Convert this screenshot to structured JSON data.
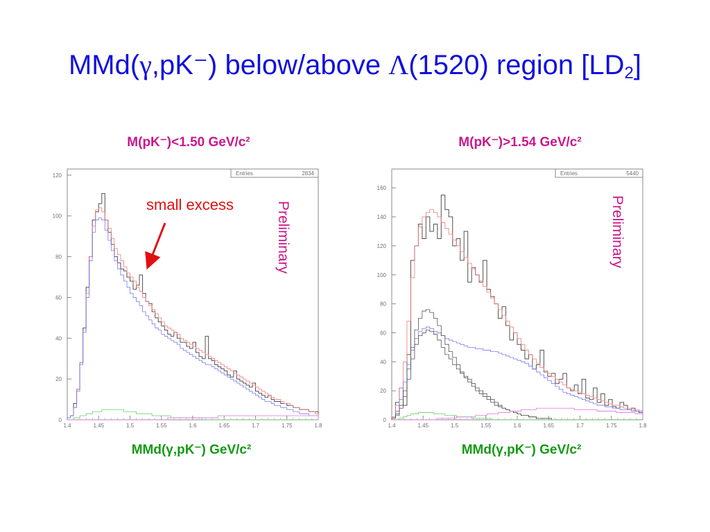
{
  "slide": {
    "title_prefix": "MMd(",
    "title_gamma": "γ",
    "title_mid": ",pK⁻) below/above ",
    "title_lambda": "Λ",
    "title_suffix": "(1520) region [LD",
    "title_sub": "2",
    "title_end": "]"
  },
  "colors": {
    "title": "#1010dd",
    "panel_title": "#c8188c",
    "axis_label": "#159a15",
    "annotation": "#e01010",
    "data_histogram": "#505050",
    "model_red": "#f07878",
    "model_blue": "#7878f0",
    "background_green": "#60d060",
    "background_magenta": "#e070e0"
  },
  "chart_data": [
    {
      "type": "histogram",
      "title": "M(pK⁻)<1.50 GeV/c²",
      "xlabel": "MMd(γ,pK⁻) GeV/c²",
      "ylabel": "",
      "xlim": [
        1.4,
        1.8
      ],
      "ylim": [
        0,
        123
      ],
      "xticks": [
        "1.4",
        "1.45",
        "1.5",
        "1.55",
        "1.6",
        "1.65",
        "1.7",
        "1.75",
        "1.8"
      ],
      "yticks": [
        "0",
        "20",
        "40",
        "60",
        "80",
        "100",
        "120"
      ],
      "stats": {
        "label": "Entries",
        "value": "2834"
      },
      "watermark": "Preliminary",
      "annotation": "small excess",
      "bin_edges": [
        1.4,
        1.8
      ],
      "series": [
        {
          "role": "data",
          "color": "#505050",
          "values": [
            1,
            2,
            8,
            15,
            28,
            45,
            65,
            80,
            98,
            102,
            106,
            111,
            98,
            92,
            86,
            80,
            77,
            74,
            73,
            70,
            68,
            64,
            66,
            71,
            62,
            58,
            57,
            53,
            50,
            48,
            46,
            44,
            42,
            41,
            43,
            40,
            38,
            38,
            36,
            35,
            38,
            33,
            31,
            30,
            41,
            30,
            29,
            27,
            26,
            25,
            24,
            22,
            21,
            24,
            20,
            19,
            18,
            17,
            16,
            18,
            14,
            13,
            12,
            11,
            12,
            10,
            9,
            9,
            8,
            8,
            7,
            7,
            6,
            6,
            5,
            5,
            5,
            4,
            4,
            4
          ]
        },
        {
          "role": "model",
          "color": "#f07878",
          "values": [
            1,
            2,
            6,
            15,
            28,
            44,
            62,
            80,
            95,
            103,
            104,
            102,
            98,
            94,
            89,
            84,
            81,
            78,
            75,
            72,
            70,
            68,
            65,
            63,
            60,
            58,
            56,
            54,
            52,
            50,
            48,
            46,
            45,
            44,
            43,
            42,
            40,
            39,
            38,
            37,
            36,
            35,
            34,
            33,
            32,
            31,
            30,
            29,
            28,
            27,
            26,
            25,
            24,
            23,
            22,
            21,
            20,
            19,
            18,
            17,
            16,
            15,
            14,
            13,
            12,
            11,
            10,
            10,
            9,
            8,
            8,
            7,
            6,
            6,
            5,
            5,
            5,
            4,
            4,
            3
          ]
        },
        {
          "role": "model",
          "color": "#7878f0",
          "values": [
            1,
            2,
            6,
            14,
            27,
            43,
            60,
            78,
            92,
            98,
            99,
            98,
            93,
            88,
            83,
            78,
            74,
            71,
            68,
            65,
            62,
            60,
            58,
            56,
            53,
            51,
            49,
            47,
            45,
            44,
            42,
            41,
            40,
            39,
            38,
            37,
            35,
            34,
            33,
            32,
            31,
            30,
            29,
            28,
            27,
            27,
            26,
            25,
            24,
            23,
            22,
            21,
            20,
            19,
            18,
            17,
            16,
            15,
            14,
            13,
            12,
            11,
            10,
            9,
            9,
            8,
            7,
            7,
            6,
            6,
            5,
            5,
            4,
            4,
            3,
            3,
            3,
            2,
            2,
            2
          ]
        },
        {
          "role": "background",
          "color": "#60d060",
          "values": [
            0,
            0,
            1,
            1,
            2,
            2,
            3,
            3,
            4,
            4,
            4,
            5,
            5,
            5,
            5,
            5,
            5,
            5,
            4,
            4,
            4,
            4,
            3,
            3,
            3,
            3,
            3,
            2,
            2,
            2,
            2,
            2,
            2,
            1,
            1,
            1,
            1,
            1,
            1,
            1,
            1,
            1,
            1,
            0,
            0,
            0,
            0,
            0,
            0,
            0,
            0,
            0,
            0,
            0,
            0,
            0,
            0,
            0,
            0,
            0,
            0,
            0,
            0,
            0,
            0,
            0,
            0,
            0,
            0,
            0,
            0,
            0,
            0,
            0,
            0,
            0,
            0,
            0,
            0,
            0
          ]
        },
        {
          "role": "background",
          "color": "#e070e0",
          "values": [
            0,
            0,
            0,
            0,
            0,
            0,
            0,
            0,
            0,
            0,
            0,
            0,
            0,
            0,
            0,
            0,
            0,
            0,
            0,
            0,
            0,
            0,
            0,
            0,
            0,
            0,
            0,
            0,
            0,
            0,
            0,
            0,
            1,
            1,
            1,
            1,
            1,
            1,
            1,
            1,
            1,
            1,
            1,
            1,
            1,
            1,
            1,
            1,
            2,
            2,
            2,
            2,
            2,
            2,
            2,
            2,
            2,
            2,
            2,
            2,
            2,
            2,
            2,
            2,
            2,
            2,
            2,
            2,
            2,
            2,
            2,
            2,
            2,
            2,
            2,
            2,
            2,
            2,
            2,
            2
          ]
        }
      ]
    },
    {
      "type": "histogram",
      "title": "M(pK⁻)>1.54 GeV/c²",
      "xlabel": "MMd(γ,pK⁻) GeV/c²",
      "ylabel": "",
      "xlim": [
        1.4,
        1.8
      ],
      "ylim": [
        0,
        173
      ],
      "xticks": [
        "1.4",
        "1.45",
        "1.5",
        "1.55",
        "1.6",
        "1.65",
        "1.7",
        "1.75",
        "1.8"
      ],
      "yticks": [
        "0",
        "20",
        "40",
        "60",
        "80",
        "100",
        "120",
        "140",
        "160"
      ],
      "stats": {
        "label": "Entries",
        "value": "5440"
      },
      "watermark": "Preliminary",
      "bin_edges": [
        1.4,
        1.8
      ],
      "series": [
        {
          "role": "data",
          "color": "#505050",
          "values": [
            2,
            12,
            22,
            10,
            45,
            110,
            120,
            135,
            125,
            140,
            130,
            135,
            125,
            155,
            145,
            140,
            120,
            125,
            110,
            130,
            95,
            105,
            100,
            95,
            110,
            90,
            85,
            80,
            70,
            78,
            65,
            55,
            60,
            52,
            48,
            42,
            45,
            35,
            38,
            48,
            33,
            30,
            32,
            25,
            28,
            32,
            22,
            20,
            24,
            18,
            28,
            15,
            14,
            22,
            12,
            18,
            10,
            14,
            9,
            8,
            12,
            10,
            7,
            8,
            6,
            5
          ]
        },
        {
          "role": "model",
          "color": "#f07878",
          "values": [
            2,
            10,
            22,
            40,
            68,
            98,
            120,
            133,
            140,
            143,
            145,
            143,
            140,
            136,
            132,
            128,
            124,
            120,
            116,
            112,
            108,
            104,
            100,
            96,
            92,
            88,
            84,
            80,
            76,
            72,
            68,
            64,
            60,
            56,
            52,
            48,
            45,
            42,
            39,
            36,
            34,
            32,
            30,
            28,
            26,
            24,
            22,
            21,
            20,
            19,
            18,
            17,
            16,
            15,
            14,
            13,
            12,
            11,
            10,
            10,
            9,
            8,
            8,
            7,
            7,
            6
          ]
        },
        {
          "role": "model",
          "color": "#7878f0",
          "values": [
            1,
            6,
            14,
            26,
            38,
            48,
            56,
            61,
            63,
            64,
            63,
            61,
            60,
            58,
            56,
            55,
            54,
            53,
            52,
            51,
            50,
            50,
            49,
            49,
            48,
            48,
            47,
            47,
            46,
            45,
            44,
            43,
            42,
            41,
            40,
            39,
            37,
            35,
            33,
            31,
            29,
            27,
            25,
            23,
            21,
            19,
            18,
            17,
            16,
            15,
            14,
            13,
            12,
            11,
            10,
            10,
            9,
            9,
            8,
            8,
            7,
            7,
            7,
            6,
            6,
            6
          ]
        },
        {
          "role": "background",
          "color": "#505050",
          "values": [
            1,
            4,
            10,
            20,
            35,
            50,
            62,
            70,
            75,
            76,
            74,
            70,
            65,
            58,
            52,
            47,
            43,
            38,
            33,
            30,
            28,
            25,
            22,
            20,
            18,
            16,
            14,
            12,
            10,
            8,
            7,
            6,
            5,
            4,
            3,
            3,
            2,
            2,
            1,
            1,
            1,
            1,
            0,
            0,
            0,
            0,
            0,
            0,
            0,
            0,
            0,
            0,
            0,
            0,
            0,
            0,
            0,
            0,
            0,
            0,
            0,
            0,
            0,
            0,
            0,
            0
          ]
        },
        {
          "role": "background",
          "color": "#505050",
          "values": [
            1,
            3,
            8,
            16,
            28,
            42,
            52,
            58,
            60,
            62,
            61,
            59,
            55,
            50,
            45,
            42,
            38,
            35,
            32,
            29,
            26,
            23,
            20,
            18,
            16,
            14,
            12,
            10,
            9,
            8,
            7,
            6,
            5,
            4,
            3,
            3,
            2,
            2,
            1,
            1,
            1,
            1,
            0,
            0,
            0,
            0,
            0,
            0,
            0,
            0,
            0,
            0,
            0,
            0,
            0,
            0,
            0,
            0,
            0,
            0,
            0,
            0,
            0,
            0,
            0,
            0
          ]
        },
        {
          "role": "background",
          "color": "#60d060",
          "values": [
            0,
            0,
            1,
            2,
            3,
            4,
            4,
            5,
            5,
            5,
            5,
            4,
            4,
            4,
            3,
            3,
            3,
            2,
            2,
            2,
            2,
            1,
            1,
            1,
            1,
            1,
            0,
            0,
            0,
            0,
            0,
            0,
            0,
            0,
            0,
            0,
            0,
            0,
            0,
            0,
            0,
            0,
            0,
            0,
            0,
            0,
            0,
            0,
            0,
            0,
            0,
            0,
            0,
            0,
            0,
            0,
            0,
            0,
            0,
            0,
            0,
            0,
            0,
            0,
            0,
            0
          ]
        },
        {
          "role": "background",
          "color": "#e070e0",
          "values": [
            0,
            0,
            0,
            0,
            0,
            0,
            0,
            0,
            0,
            0,
            0,
            0,
            1,
            1,
            1,
            1,
            1,
            2,
            2,
            2,
            2,
            2,
            3,
            3,
            3,
            4,
            4,
            4,
            5,
            5,
            5,
            6,
            6,
            6,
            7,
            7,
            7,
            7,
            8,
            8,
            8,
            8,
            8,
            8,
            8,
            8,
            8,
            8,
            7,
            7,
            7,
            7,
            7,
            7,
            6,
            6,
            6,
            6,
            6,
            5,
            5,
            5,
            5,
            5,
            4,
            4
          ]
        }
      ]
    }
  ]
}
